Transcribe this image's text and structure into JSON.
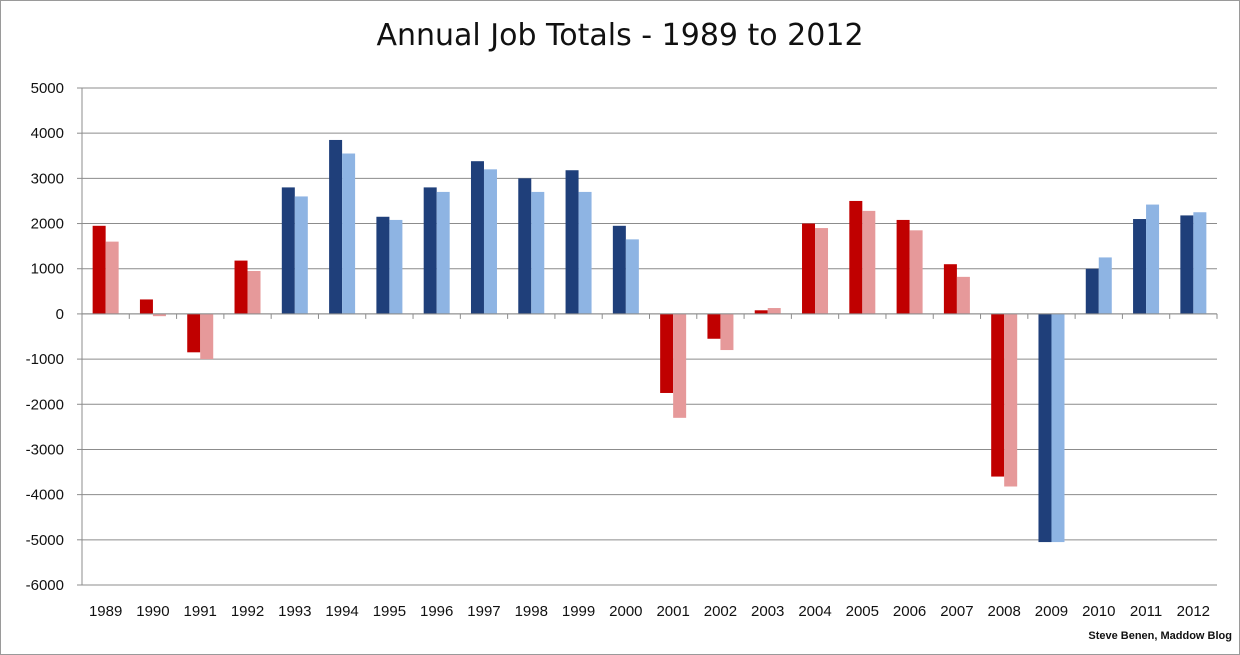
{
  "chart_data": {
    "type": "bar",
    "title": "Annual Job Totals - 1989 to 2012",
    "credit": "Steve Benen, Maddow Blog",
    "categories": [
      "1989",
      "1990",
      "1991",
      "1992",
      "1993",
      "1994",
      "1995",
      "1996",
      "1997",
      "1998",
      "1999",
      "2000",
      "2001",
      "2002",
      "2003",
      "2004",
      "2005",
      "2006",
      "2007",
      "2008",
      "2009",
      "2010",
      "2011",
      "2012"
    ],
    "series": [
      {
        "values": [
          1950,
          320,
          -850,
          1180,
          2800,
          3850,
          2150,
          2800,
          3380,
          3000,
          3180,
          1950,
          -1750,
          -550,
          80,
          2000,
          2500,
          2080,
          1100,
          -3600,
          -5050,
          1000,
          2100,
          2180
        ]
      },
      {
        "values": [
          1600,
          -50,
          -1000,
          950,
          2600,
          3550,
          2080,
          2700,
          3200,
          2700,
          2700,
          1650,
          -2300,
          -800,
          130,
          1900,
          2280,
          1850,
          820,
          -3820,
          -5050,
          1250,
          2420,
          2250
        ]
      }
    ],
    "colors": {
      "dark_red": "#c00000",
      "light_red": "#e6999a",
      "dark_blue": "#1f3f7a",
      "light_blue": "#8eb4e3"
    },
    "bar_party": [
      "r",
      "r",
      "r",
      "r",
      "b",
      "b",
      "b",
      "b",
      "b",
      "b",
      "b",
      "b",
      "r",
      "r",
      "r",
      "r",
      "r",
      "r",
      "r",
      "r",
      "b",
      "b",
      "b",
      "b"
    ],
    "ylim": [
      -6000,
      5000
    ],
    "yticks": [
      5000,
      4000,
      3000,
      2000,
      1000,
      0,
      -1000,
      -2000,
      -3000,
      -4000,
      -5000,
      -6000
    ],
    "grid": true,
    "xlabel": "",
    "ylabel": ""
  }
}
